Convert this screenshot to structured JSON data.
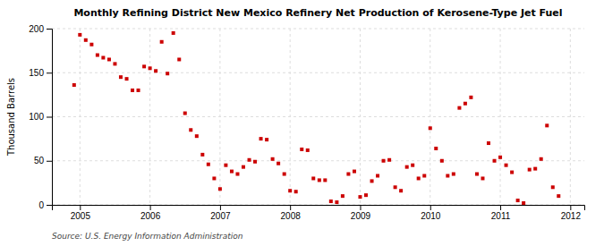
{
  "chart_data": {
    "type": "scatter",
    "title": "Monthly Refining District New Mexico Refinery Net Production of Kerosene-Type Jet Fuel",
    "ylabel": "Thousand Barrels",
    "annotations": [
      "Source: U.S. Energy Information Administration"
    ],
    "color": "#cc0000",
    "marker": "square",
    "grid": true,
    "xlim": [
      2004.6,
      2012.2
    ],
    "ylim": [
      0,
      200
    ],
    "xticks": [
      2005,
      2006,
      2007,
      2008,
      2009,
      2010,
      2011,
      2012
    ],
    "yticks": [
      0,
      50,
      100,
      150,
      200
    ],
    "x": [
      2004.917,
      2005.0,
      2005.083,
      2005.167,
      2005.25,
      2005.333,
      2005.417,
      2005.5,
      2005.583,
      2005.667,
      2005.75,
      2005.833,
      2005.917,
      2006.0,
      2006.083,
      2006.167,
      2006.25,
      2006.333,
      2006.417,
      2006.5,
      2006.583,
      2006.667,
      2006.75,
      2006.833,
      2006.917,
      2007.0,
      2007.083,
      2007.167,
      2007.25,
      2007.333,
      2007.417,
      2007.5,
      2007.583,
      2007.667,
      2007.75,
      2007.833,
      2007.917,
      2008.0,
      2008.083,
      2008.167,
      2008.25,
      2008.333,
      2008.417,
      2008.5,
      2008.583,
      2008.667,
      2008.75,
      2008.833,
      2008.917,
      2009.0,
      2009.083,
      2009.167,
      2009.25,
      2009.333,
      2009.417,
      2009.5,
      2009.583,
      2009.667,
      2009.75,
      2009.833,
      2009.917,
      2010.0,
      2010.083,
      2010.167,
      2010.25,
      2010.333,
      2010.417,
      2010.5,
      2010.583,
      2010.667,
      2010.75,
      2010.833,
      2010.917,
      2011.0,
      2011.083,
      2011.167,
      2011.25,
      2011.333,
      2011.417,
      2011.5,
      2011.583,
      2011.667,
      2011.75,
      2011.833
    ],
    "values": [
      136,
      193,
      187,
      182,
      170,
      167,
      165,
      160,
      145,
      143,
      130,
      130,
      157,
      155,
      152,
      185,
      149,
      195,
      165,
      104,
      85,
      78,
      57,
      46,
      30,
      18,
      45,
      38,
      35,
      43,
      51,
      49,
      75,
      74,
      52,
      47,
      35,
      16,
      15,
      63,
      62,
      30,
      28,
      28,
      4,
      3,
      10,
      35,
      38,
      9,
      11,
      27,
      33,
      50,
      51,
      20,
      16,
      43,
      45,
      30,
      33,
      87,
      64,
      50,
      33,
      35,
      110,
      115,
      122,
      35,
      30,
      70,
      50,
      54,
      45,
      37,
      5,
      2,
      40,
      41,
      52,
      90,
      20,
      10
    ]
  }
}
